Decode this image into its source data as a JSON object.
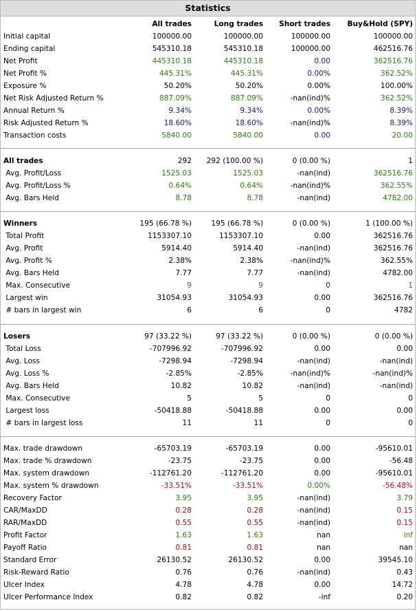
{
  "title": "Statistics",
  "columns": [
    "All trades",
    "Long trades",
    "Short trades",
    "Buy&Hold (SPY)"
  ],
  "colors": {
    "green": "#2f7d12",
    "navy": "#18187e",
    "red": "#9b1010",
    "black": "#000000"
  },
  "sections": [
    {
      "rows": [
        {
          "label": "Initial capital",
          "values": [
            "100000.00",
            "100000.00",
            "100000.00",
            "100000.00"
          ],
          "colors": [
            "k",
            "k",
            "k",
            "k"
          ]
        },
        {
          "label": "Ending capital",
          "values": [
            "545310.18",
            "545310.18",
            "100000.00",
            "462516.76"
          ],
          "colors": [
            "k",
            "k",
            "k",
            "k"
          ]
        },
        {
          "label": "Net Profit",
          "values": [
            "445310.18",
            "445310.18",
            "0.00",
            "362516.76"
          ],
          "colors": [
            "g",
            "g",
            "n",
            "g"
          ]
        },
        {
          "label": "Net Profit %",
          "values": [
            "445.31%",
            "445.31%",
            "0.00%",
            "362.52%"
          ],
          "colors": [
            "g",
            "g",
            "n",
            "g"
          ]
        },
        {
          "label": "Exposure %",
          "values": [
            "50.20%",
            "50.20%",
            "0.00%",
            "100.00%"
          ],
          "colors": [
            "k",
            "k",
            "k",
            "k"
          ]
        },
        {
          "label": "Net Risk Adjusted Return %",
          "values": [
            "887.09%",
            "887.09%",
            "-nan(ind)%",
            "362.52%"
          ],
          "colors": [
            "g",
            "g",
            "k",
            "g"
          ]
        },
        {
          "label": "Annual Return %",
          "values": [
            "9.34%",
            "9.34%",
            "0.00%",
            "8.39%"
          ],
          "colors": [
            "n",
            "n",
            "n",
            "n"
          ]
        },
        {
          "label": "Risk Adjusted Return %",
          "values": [
            "18.60%",
            "18.60%",
            "-nan(ind)%",
            "8.39%"
          ],
          "colors": [
            "n",
            "n",
            "k",
            "n"
          ]
        },
        {
          "label": "Transaction costs",
          "values": [
            "5840.00",
            "5840.00",
            "0.00",
            "20.00"
          ],
          "colors": [
            "g",
            "g",
            "n",
            "g"
          ]
        }
      ]
    },
    {
      "rows": [
        {
          "label": "All trades",
          "bold": true,
          "values": [
            "292",
            "292 (100.00 %)",
            "0 (0.00 %)",
            "1"
          ],
          "colors": [
            "k",
            "k",
            "k",
            "k"
          ]
        },
        {
          "label": " Avg. Profit/Loss",
          "values": [
            "1525.03",
            "1525.03",
            "-nan(ind)",
            "362516.76"
          ],
          "colors": [
            "g",
            "g",
            "k",
            "g"
          ]
        },
        {
          "label": " Avg. Profit/Loss %",
          "values": [
            "0.64%",
            "0.64%",
            "-nan(ind)%",
            "362.55%"
          ],
          "colors": [
            "g",
            "g",
            "k",
            "g"
          ]
        },
        {
          "label": " Avg. Bars Held",
          "values": [
            "8.78",
            "8.78",
            "-nan(ind)",
            "4782.00"
          ],
          "colors": [
            "g",
            "g",
            "k",
            "g"
          ]
        }
      ]
    },
    {
      "rows": [
        {
          "label": "Winners",
          "bold": true,
          "values": [
            "195 (66.78 %)",
            "195 (66.78 %)",
            "0 (0.00 %)",
            "1 (100.00 %)"
          ],
          "colors": [
            "k",
            "k",
            "k",
            "k"
          ]
        },
        {
          "label": " Total Profit",
          "values": [
            "1153307.10",
            "1153307.10",
            "0.00",
            "362516.76"
          ],
          "colors": [
            "k",
            "k",
            "k",
            "k"
          ]
        },
        {
          "label": " Avg. Profit",
          "values": [
            "5914.40",
            "5914.40",
            "-nan(ind)",
            "362516.76"
          ],
          "colors": [
            "k",
            "k",
            "k",
            "k"
          ]
        },
        {
          "label": " Avg. Profit %",
          "values": [
            "2.38%",
            "2.38%",
            "-nan(ind)%",
            "362.55%"
          ],
          "colors": [
            "k",
            "k",
            "k",
            "k"
          ]
        },
        {
          "label": " Avg. Bars Held",
          "values": [
            "7.77",
            "7.77",
            "-nan(ind)",
            "4782.00"
          ],
          "colors": [
            "k",
            "k",
            "k",
            "k"
          ]
        },
        {
          "label": " Max. Consecutive",
          "values": [
            "9",
            "9",
            "0",
            "1"
          ],
          "colors": [
            "g",
            "g",
            "n",
            "g"
          ]
        },
        {
          "label": " Largest win",
          "values": [
            "31054.93",
            "31054.93",
            "0.00",
            "362516.76"
          ],
          "colors": [
            "k",
            "k",
            "k",
            "k"
          ]
        },
        {
          "label": " # bars in largest win",
          "values": [
            "6",
            "6",
            "0",
            "4782"
          ],
          "colors": [
            "k",
            "k",
            "k",
            "k"
          ]
        }
      ]
    },
    {
      "rows": [
        {
          "label": "Losers",
          "bold": true,
          "values": [
            "97 (33.22 %)",
            "97 (33.22 %)",
            "0 (0.00 %)",
            "0 (0.00 %)"
          ],
          "colors": [
            "k",
            "k",
            "k",
            "k"
          ]
        },
        {
          "label": " Total Loss",
          "values": [
            "-707996.92",
            "-707996.92",
            "0.00",
            "0.00"
          ],
          "colors": [
            "k",
            "k",
            "k",
            "k"
          ]
        },
        {
          "label": " Avg. Loss",
          "values": [
            "-7298.94",
            "-7298.94",
            "-nan(ind)",
            "-nan(ind)"
          ],
          "colors": [
            "k",
            "k",
            "k",
            "k"
          ]
        },
        {
          "label": " Avg. Loss %",
          "values": [
            "-2.85%",
            "-2.85%",
            "-nan(ind)%",
            "-nan(ind)%"
          ],
          "colors": [
            "k",
            "k",
            "k",
            "k"
          ]
        },
        {
          "label": " Avg. Bars Held",
          "values": [
            "10.82",
            "10.82",
            "-nan(ind)",
            "-nan(ind)"
          ],
          "colors": [
            "k",
            "k",
            "k",
            "k"
          ]
        },
        {
          "label": " Max. Consecutive",
          "values": [
            "5",
            "5",
            "0",
            "0"
          ],
          "colors": [
            "k",
            "k",
            "k",
            "k"
          ]
        },
        {
          "label": " Largest loss",
          "values": [
            "-50418.88",
            "-50418.88",
            "0.00",
            "0.00"
          ],
          "colors": [
            "k",
            "k",
            "k",
            "k"
          ]
        },
        {
          "label": " # bars in largest loss",
          "values": [
            "11",
            "11",
            "0",
            "0"
          ],
          "colors": [
            "k",
            "k",
            "k",
            "k"
          ]
        }
      ]
    },
    {
      "rows": [
        {
          "label": "Max. trade drawdown",
          "values": [
            "-65703.19",
            "-65703.19",
            "0.00",
            "-95610.01"
          ],
          "colors": [
            "k",
            "k",
            "k",
            "k"
          ]
        },
        {
          "label": "Max. trade % drawdown",
          "values": [
            "-23.75",
            "-23.75",
            "0.00",
            "-56.48"
          ],
          "colors": [
            "k",
            "k",
            "k",
            "k"
          ]
        },
        {
          "label": "Max. system drawdown",
          "values": [
            "-112761.20",
            "-112761.20",
            "0.00",
            "-95610.01"
          ],
          "colors": [
            "k",
            "k",
            "k",
            "k"
          ]
        },
        {
          "label": "Max. system % drawdown",
          "values": [
            "-33.51%",
            "-33.51%",
            "0.00%",
            "-56.48%"
          ],
          "colors": [
            "r",
            "r",
            "g",
            "r"
          ]
        },
        {
          "label": "Recovery Factor",
          "values": [
            "3.95",
            "3.95",
            "-nan(ind)",
            "3.79"
          ],
          "colors": [
            "g",
            "g",
            "k",
            "g"
          ]
        },
        {
          "label": "CAR/MaxDD",
          "values": [
            "0.28",
            "0.28",
            "-nan(ind)",
            "0.15"
          ],
          "colors": [
            "r",
            "r",
            "k",
            "r"
          ]
        },
        {
          "label": "RAR/MaxDD",
          "values": [
            "0.55",
            "0.55",
            "-nan(ind)",
            "0.15"
          ],
          "colors": [
            "r",
            "r",
            "k",
            "r"
          ]
        },
        {
          "label": "Profit Factor",
          "values": [
            "1.63",
            "1.63",
            "nan",
            "inf"
          ],
          "colors": [
            "g",
            "g",
            "k",
            "g"
          ]
        },
        {
          "label": "Payoff Ratio",
          "values": [
            "0.81",
            "0.81",
            "nan",
            "nan"
          ],
          "colors": [
            "r",
            "r",
            "k",
            "k"
          ]
        },
        {
          "label": "Standard Error",
          "values": [
            "26130.52",
            "26130.52",
            "0.00",
            "39545.10"
          ],
          "colors": [
            "k",
            "k",
            "k",
            "k"
          ]
        },
        {
          "label": "Risk-Reward Ratio",
          "values": [
            "0.76",
            "0.76",
            "-nan(ind)",
            "0.43"
          ],
          "colors": [
            "k",
            "k",
            "k",
            "k"
          ]
        },
        {
          "label": "Ulcer Index",
          "values": [
            "4.78",
            "4.78",
            "0.00",
            "14.72"
          ],
          "colors": [
            "k",
            "k",
            "k",
            "k"
          ]
        },
        {
          "label": "Ulcer Performance Index",
          "values": [
            "0.82",
            "0.82",
            "-inf",
            "0.20"
          ],
          "colors": [
            "k",
            "k",
            "k",
            "k"
          ]
        }
      ]
    }
  ]
}
